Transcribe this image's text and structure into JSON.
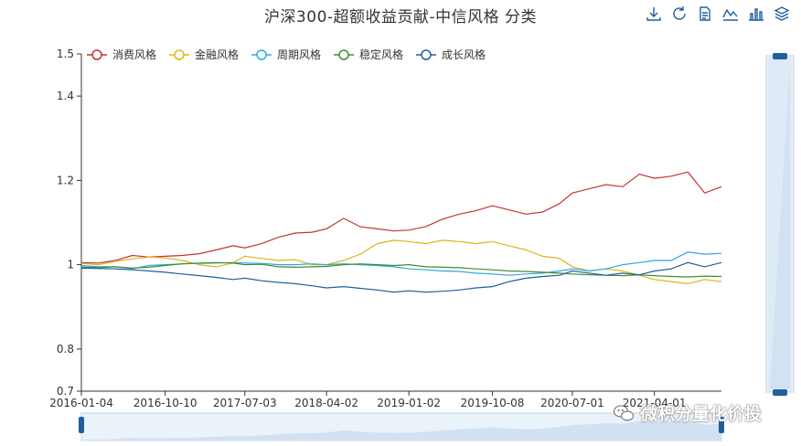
{
  "title": "沪深300-超额收益贡献-中信风格 分类",
  "toolbar": [
    {
      "name": "download-icon"
    },
    {
      "name": "refresh-icon"
    },
    {
      "name": "data-view-icon"
    },
    {
      "name": "line-chart-icon"
    },
    {
      "name": "bar-chart-icon"
    },
    {
      "name": "stack-icon"
    }
  ],
  "watermark": "微积分量化价投",
  "colors": {
    "consumer": "#c23531",
    "finance": "#e0b419",
    "cyclical": "#2ea7dd",
    "stable": "#3f8e2f",
    "growth": "#1f5f9e"
  },
  "chart_data": {
    "type": "line",
    "x_ticks": [
      "2016-01-04",
      "2016-10-10",
      "2017-07-03",
      "2018-04-02",
      "2019-01-02",
      "2019-10-08",
      "2020-07-01",
      "2021-04-01"
    ],
    "x": [
      "2016-01-04",
      "2016-03-01",
      "2016-04-26",
      "2016-06-22",
      "2016-08-17",
      "2016-10-10",
      "2016-12-06",
      "2017-02-01",
      "2017-03-29",
      "2017-05-24",
      "2017-07-03",
      "2017-08-28",
      "2017-10-23",
      "2017-12-18",
      "2018-02-12",
      "2018-04-02",
      "2018-05-29",
      "2018-07-24",
      "2018-09-18",
      "2018-11-13",
      "2019-01-02",
      "2019-02-27",
      "2019-04-24",
      "2019-06-19",
      "2019-08-14",
      "2019-10-08",
      "2019-12-03",
      "2020-01-28",
      "2020-03-24",
      "2020-05-19",
      "2020-07-01",
      "2020-08-26",
      "2020-10-21",
      "2020-12-16",
      "2021-02-10",
      "2021-04-01",
      "2021-05-27",
      "2021-07-22",
      "2021-09-16",
      "2021-11-11"
    ],
    "ylim": [
      0.7,
      1.5
    ],
    "y_ticks": [
      0.7,
      0.8,
      1,
      1.2,
      1.4,
      1.5
    ],
    "legend_position": "top-left",
    "grid": false,
    "series": [
      {
        "name": "消费风格",
        "color_key": "consumer",
        "values": [
          1.005,
          1.004,
          1.01,
          1.022,
          1.018,
          1.02,
          1.022,
          1.026,
          1.035,
          1.045,
          1.04,
          1.05,
          1.065,
          1.075,
          1.077,
          1.085,
          1.11,
          1.09,
          1.085,
          1.08,
          1.082,
          1.09,
          1.108,
          1.12,
          1.128,
          1.14,
          1.13,
          1.12,
          1.125,
          1.145,
          1.17,
          1.18,
          1.19,
          1.185,
          1.215,
          1.205,
          1.21,
          1.22,
          1.17,
          1.185
        ]
      },
      {
        "name": "金融风格",
        "color_key": "finance",
        "values": [
          1.003,
          1.0,
          1.008,
          1.014,
          1.018,
          1.016,
          1.01,
          1.0,
          0.995,
          1.004,
          1.02,
          1.015,
          1.01,
          1.012,
          1.0,
          1.0,
          1.01,
          1.025,
          1.05,
          1.058,
          1.055,
          1.05,
          1.058,
          1.055,
          1.05,
          1.055,
          1.045,
          1.035,
          1.02,
          1.015,
          0.995,
          0.985,
          0.99,
          0.985,
          0.975,
          0.965,
          0.96,
          0.955,
          0.965,
          0.96
        ]
      },
      {
        "name": "周期风格",
        "color_key": "cyclical",
        "values": [
          0.998,
          0.995,
          0.995,
          0.99,
          0.998,
          1.0,
          1.002,
          1.003,
          1.004,
          1.005,
          1.004,
          1.003,
          1.0,
          1.0,
          1.002,
          1.0,
          1.002,
          1.0,
          0.998,
          0.995,
          0.99,
          0.988,
          0.985,
          0.984,
          0.98,
          0.978,
          0.975,
          0.978,
          0.98,
          0.985,
          0.99,
          0.985,
          0.99,
          1.0,
          1.005,
          1.01,
          1.01,
          1.03,
          1.025,
          1.027
        ]
      },
      {
        "name": "稳定风格",
        "color_key": "stable",
        "values": [
          0.994,
          0.993,
          0.995,
          0.992,
          0.994,
          0.998,
          1.002,
          1.004,
          1.005,
          1.004,
          1.0,
          1.001,
          0.995,
          0.994,
          0.995,
          0.996,
          1.0,
          1.002,
          1.0,
          0.998,
          1.0,
          0.995,
          0.994,
          0.993,
          0.99,
          0.988,
          0.985,
          0.984,
          0.982,
          0.98,
          0.978,
          0.976,
          0.975,
          0.974,
          0.976,
          0.974,
          0.972,
          0.971,
          0.973,
          0.972
        ]
      },
      {
        "name": "成长风格",
        "color_key": "growth",
        "values": [
          0.992,
          0.991,
          0.99,
          0.988,
          0.985,
          0.982,
          0.978,
          0.974,
          0.97,
          0.965,
          0.968,
          0.962,
          0.958,
          0.955,
          0.95,
          0.945,
          0.948,
          0.944,
          0.94,
          0.935,
          0.938,
          0.935,
          0.937,
          0.94,
          0.945,
          0.948,
          0.96,
          0.968,
          0.972,
          0.975,
          0.985,
          0.98,
          0.975,
          0.98,
          0.976,
          0.985,
          0.99,
          1.005,
          0.995,
          1.005
        ]
      }
    ]
  }
}
